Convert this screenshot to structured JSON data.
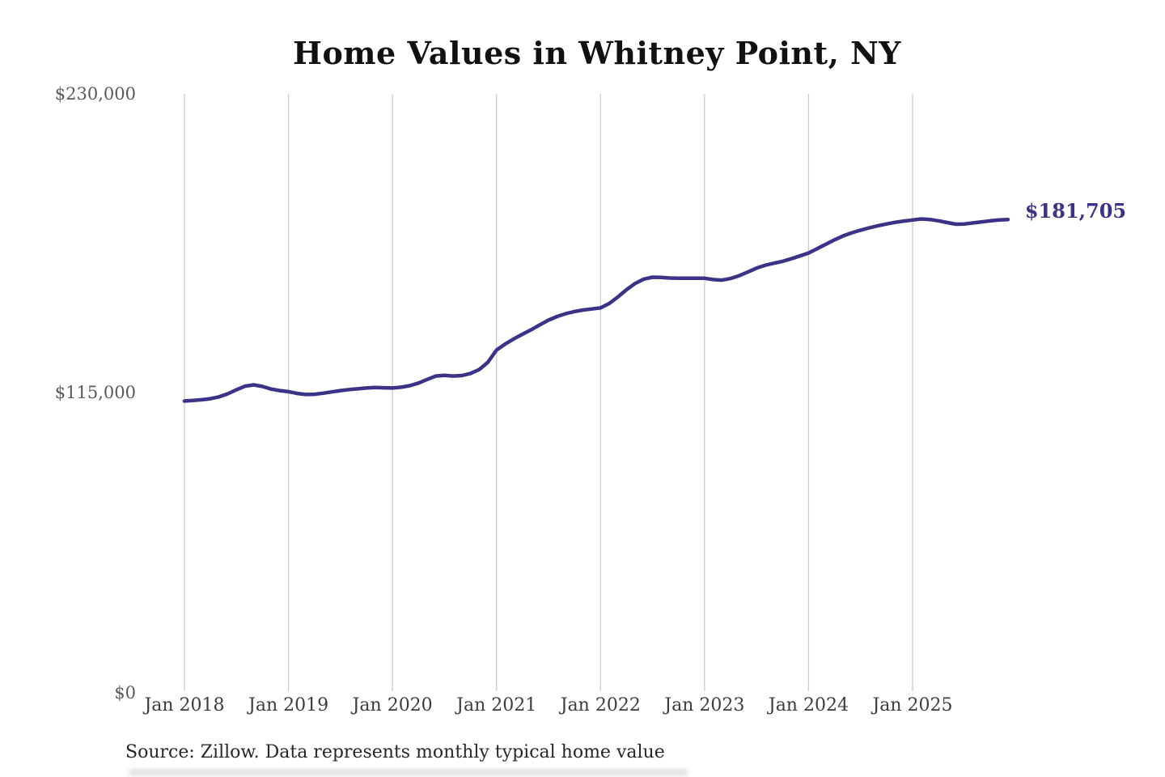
{
  "chart_data": {
    "type": "line",
    "title": "Home Values in Whitney Point, NY",
    "xlabel": "",
    "ylabel": "",
    "y_tick_labels": [
      "$0",
      "$115,000",
      "$230,000"
    ],
    "y_ticks": [
      0,
      115000,
      230000
    ],
    "ylim": [
      0,
      230000
    ],
    "x_tick_labels": [
      "Jan 2018",
      "Jan 2019",
      "Jan 2020",
      "Jan 2021",
      "Jan 2022",
      "Jan 2023",
      "Jan 2024",
      "Jan 2025"
    ],
    "grid": "vertical-only",
    "gridline_color": "#cccccc",
    "legend": "none",
    "series_name": "Monthly typical home value",
    "frequency": "monthly",
    "line_color": "#3a3387",
    "end_label": "$181,705",
    "last_value": 181705,
    "months": [
      "2018-01",
      "2018-02",
      "2018-03",
      "2018-04",
      "2018-05",
      "2018-06",
      "2018-07",
      "2018-08",
      "2018-09",
      "2018-10",
      "2018-11",
      "2018-12",
      "2019-01",
      "2019-02",
      "2019-03",
      "2019-04",
      "2019-05",
      "2019-06",
      "2019-07",
      "2019-08",
      "2019-09",
      "2019-10",
      "2019-11",
      "2019-12",
      "2020-01",
      "2020-02",
      "2020-03",
      "2020-04",
      "2020-05",
      "2020-06",
      "2020-07",
      "2020-08",
      "2020-09",
      "2020-10",
      "2020-11",
      "2020-12",
      "2021-01",
      "2021-02",
      "2021-03",
      "2021-04",
      "2021-05",
      "2021-06",
      "2021-07",
      "2021-08",
      "2021-09",
      "2021-10",
      "2021-11",
      "2021-12",
      "2022-01",
      "2022-02",
      "2022-03",
      "2022-04",
      "2022-05",
      "2022-06",
      "2022-07",
      "2022-08",
      "2022-09",
      "2022-10",
      "2022-11",
      "2022-12",
      "2023-01",
      "2023-02",
      "2023-03",
      "2023-04",
      "2023-05",
      "2023-06",
      "2023-07",
      "2023-08",
      "2023-09",
      "2023-10",
      "2023-11",
      "2023-12",
      "2024-01",
      "2024-02",
      "2024-03",
      "2024-04",
      "2024-05",
      "2024-06",
      "2024-07",
      "2024-08",
      "2024-09",
      "2024-10",
      "2024-11",
      "2024-12",
      "2025-01",
      "2025-02",
      "2025-03",
      "2025-04",
      "2025-05",
      "2025-06",
      "2025-07",
      "2025-08",
      "2025-09",
      "2025-10",
      "2025-11",
      "2025-12"
    ],
    "values": [
      111900,
      112100,
      112400,
      112800,
      113500,
      114700,
      116200,
      117600,
      118100,
      117500,
      116500,
      115900,
      115500,
      114800,
      114400,
      114500,
      114900,
      115400,
      115900,
      116300,
      116600,
      116900,
      117100,
      117000,
      116900,
      117200,
      117800,
      118800,
      120200,
      121500,
      121800,
      121500,
      121700,
      122500,
      124000,
      126800,
      131500,
      133800,
      135800,
      137600,
      139300,
      141200,
      143000,
      144400,
      145500,
      146300,
      146900,
      147300,
      147700,
      149400,
      151900,
      154700,
      157100,
      158800,
      159500,
      159400,
      159200,
      159100,
      159100,
      159100,
      159100,
      158600,
      158400,
      159000,
      160100,
      161500,
      163000,
      164100,
      164900,
      165600,
      166600,
      167700,
      168800,
      170500,
      172200,
      173900,
      175400,
      176600,
      177600,
      178500,
      179300,
      180000,
      180600,
      181100,
      181500,
      181900,
      181700,
      181200,
      180500,
      179900,
      180000,
      180400,
      180800,
      181200,
      181500,
      181705
    ],
    "source_note": "Source: Zillow. Data represents monthly typical home value"
  }
}
